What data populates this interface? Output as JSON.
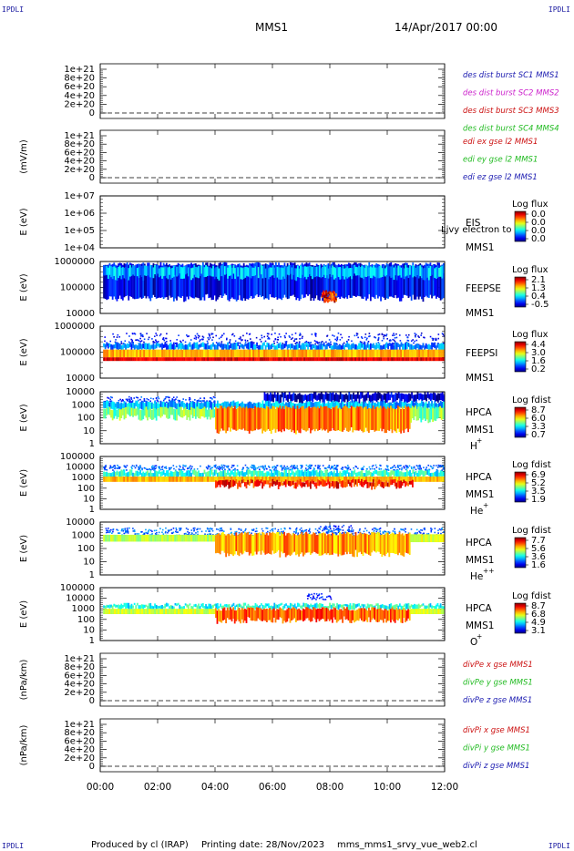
{
  "corner_label": "IPDLI",
  "header": {
    "title": "MMS1",
    "datetime": "14/Apr/2017 00:00"
  },
  "footer": {
    "produced_by": "Produced by cl (IRAP)",
    "printing_date": "Printing date: 28/Nov/2023",
    "script": "mms_mms1_srvy_vue_web2.cl"
  },
  "time_axis": {
    "range_hours": [
      0,
      12
    ],
    "tick_labels": [
      "00:00",
      "02:00",
      "04:00",
      "06:00",
      "08:00",
      "10:00",
      "12:00"
    ]
  },
  "chart_data": [
    {
      "type": "line",
      "id": "des",
      "ylabel": "",
      "ticks": [
        "1e+21",
        "8e+20",
        "6e+20",
        "4e+20",
        "2e+20",
        "0"
      ],
      "zero_line": true,
      "series": [
        {
          "name": "des dist burst SC1 MMS1",
          "color": "#1a1ab0"
        },
        {
          "name": "des dist burst SC2 MMS2",
          "color": "#cc22cc"
        },
        {
          "name": "des dist burst SC3 MMS3",
          "color": "#cc1111"
        },
        {
          "name": "des dist burst SC4 MMS4",
          "color": "#22bb22"
        }
      ]
    },
    {
      "type": "line",
      "id": "edi",
      "ylabel": "(mV/m)",
      "ticks": [
        "1e+21",
        "8e+20",
        "6e+20",
        "4e+20",
        "2e+20",
        "0"
      ],
      "zero_line": true,
      "series": [
        {
          "name": "edi ex gse l2 MMS1",
          "color": "#cc1111"
        },
        {
          "name": "edi ey gse l2 MMS1",
          "color": "#22bb22"
        },
        {
          "name": "edi ez gse l2 MMS1",
          "color": "#1a1ab0"
        }
      ]
    },
    {
      "type": "heatmap",
      "id": "eis",
      "ylabel": "E (eV)",
      "ticks": [
        "1e+07",
        "1e+06",
        "1e+05",
        "1e+04"
      ],
      "instrument": "EIS",
      "spacecraft": "MMS1",
      "overlay": "Ljvy electron to",
      "colorbar": {
        "title": "Log flux",
        "labels": [
          "0.0",
          "0.0",
          "0.0",
          "0.0"
        ]
      },
      "bands": []
    },
    {
      "type": "heatmap",
      "id": "feepse",
      "ylabel": "E (eV)",
      "ticks": [
        "1000000",
        "100000",
        "10000"
      ],
      "instrument": "FEEPSE",
      "spacecraft": "MMS1",
      "colorbar": {
        "title": "Log flux",
        "labels": [
          "2.1",
          "1.3",
          "0.4",
          "-0.5"
        ]
      },
      "bands": [
        {
          "y0": 0.3,
          "y1": 0.95,
          "t0": 0.1,
          "t1": 12,
          "level": 0.12,
          "style": "streak"
        },
        {
          "y0": 0.7,
          "y1": 0.9,
          "t0": 0.1,
          "t1": 12,
          "level": 0.3,
          "style": "streak"
        },
        {
          "y0": 0.25,
          "y1": 0.45,
          "t0": 7.7,
          "t1": 8.2,
          "level": 0.85,
          "style": "blob"
        }
      ]
    },
    {
      "type": "heatmap",
      "id": "feepsi",
      "ylabel": "E (eV)",
      "ticks": [
        "1000000",
        "100000",
        "10000"
      ],
      "instrument": "FEEPSI",
      "spacecraft": "MMS1",
      "colorbar": {
        "title": "Log flux",
        "labels": [
          "4.4",
          "3.0",
          "1.6",
          "0.2"
        ]
      },
      "bands": [
        {
          "y0": 0.6,
          "y1": 0.88,
          "t0": 0.1,
          "t1": 12,
          "level": 0.05,
          "style": "speckle"
        },
        {
          "y0": 0.55,
          "y1": 0.66,
          "t0": 0.1,
          "t1": 12,
          "level": 0.25,
          "style": "streak"
        },
        {
          "y0": 0.4,
          "y1": 0.55,
          "t0": 0.1,
          "t1": 12,
          "level": 0.7,
          "style": "solid"
        },
        {
          "y0": 0.33,
          "y1": 0.4,
          "t0": 0.1,
          "t1": 12,
          "level": 0.9,
          "style": "solid"
        }
      ]
    },
    {
      "type": "heatmap",
      "id": "hpca_h",
      "ylabel": "E (eV)",
      "ticks": [
        "10000",
        "1000",
        "100",
        "10",
        "1"
      ],
      "instrument": "HPCA",
      "spacecraft": "MMS1",
      "species": "H",
      "species_sup": "+",
      "colorbar": {
        "title": "Log fdist",
        "labels": [
          "8.7",
          "6.0",
          "3.3",
          "0.7"
        ]
      },
      "bands": [
        {
          "y0": 0.78,
          "y1": 0.92,
          "t0": 0.1,
          "t1": 4,
          "level": 0.1,
          "style": "speckle"
        },
        {
          "y0": 0.82,
          "y1": 0.97,
          "t0": 5.7,
          "t1": 12,
          "level": 0.08,
          "style": "streak"
        },
        {
          "y0": 0.65,
          "y1": 0.8,
          "t0": 0.1,
          "t1": 12,
          "level": 0.3,
          "style": "streak"
        },
        {
          "y0": 0.5,
          "y1": 0.68,
          "t0": 0.1,
          "t1": 4,
          "level": 0.5,
          "style": "streak"
        },
        {
          "y0": 0.25,
          "y1": 0.7,
          "t0": 4,
          "t1": 10.8,
          "level": 0.75,
          "style": "streak"
        },
        {
          "y0": 0.45,
          "y1": 0.7,
          "t0": 10.8,
          "t1": 12,
          "level": 0.5,
          "style": "streak"
        }
      ]
    },
    {
      "type": "heatmap",
      "id": "hpca_he1",
      "ylabel": "E (eV)",
      "ticks": [
        "100000",
        "10000",
        "1000",
        "100",
        "10",
        "1"
      ],
      "instrument": "HPCA",
      "spacecraft": "MMS1",
      "species": "He",
      "species_sup": "+",
      "colorbar": {
        "title": "Log fdist",
        "labels": [
          "6.9",
          "5.2",
          "3.5",
          "1.9"
        ]
      },
      "bands": [
        {
          "y0": 0.75,
          "y1": 0.85,
          "t0": 0.1,
          "t1": 12,
          "level": 0.15,
          "style": "speckle"
        },
        {
          "y0": 0.6,
          "y1": 0.72,
          "t0": 0.1,
          "t1": 12,
          "level": 0.4,
          "style": "streak"
        },
        {
          "y0": 0.52,
          "y1": 0.62,
          "t0": 0.1,
          "t1": 12,
          "level": 0.7,
          "style": "solid"
        },
        {
          "y0": 0.44,
          "y1": 0.54,
          "t0": 4,
          "t1": 10.9,
          "level": 0.85,
          "style": "streak"
        }
      ]
    },
    {
      "type": "heatmap",
      "id": "hpca_he2",
      "ylabel": "E (eV)",
      "ticks": [
        "10000",
        "1000",
        "100",
        "10",
        "1"
      ],
      "instrument": "HPCA",
      "spacecraft": "MMS1",
      "species": "He",
      "species_sup": "++",
      "colorbar": {
        "title": "Log fdist",
        "labels": [
          "7.7",
          "5.6",
          "3.6",
          "1.6"
        ]
      },
      "bands": [
        {
          "y0": 0.8,
          "y1": 0.95,
          "t0": 7.6,
          "t1": 8.8,
          "level": 0.08,
          "style": "speckle"
        },
        {
          "y0": 0.75,
          "y1": 0.9,
          "t0": 0.1,
          "t1": 12,
          "level": 0.15,
          "style": "speckle"
        },
        {
          "y0": 0.63,
          "y1": 0.76,
          "t0": 0.1,
          "t1": 4,
          "level": 0.55,
          "style": "solid"
        },
        {
          "y0": 0.4,
          "y1": 0.78,
          "t0": 4,
          "t1": 10.8,
          "level": 0.72,
          "style": "streak"
        },
        {
          "y0": 0.62,
          "y1": 0.77,
          "t0": 10.8,
          "t1": 12,
          "level": 0.6,
          "style": "solid"
        }
      ]
    },
    {
      "type": "heatmap",
      "id": "hpca_o",
      "ylabel": "E (eV)",
      "ticks": [
        "100000",
        "10000",
        "1000",
        "100",
        "10",
        "1"
      ],
      "instrument": "HPCA",
      "spacecraft": "MMS1",
      "species": "O",
      "species_sup": "+",
      "colorbar": {
        "title": "Log fdist",
        "labels": [
          "8.7",
          "6.8",
          "4.9",
          "3.1"
        ]
      },
      "bands": [
        {
          "y0": 0.78,
          "y1": 0.9,
          "t0": 7.2,
          "t1": 8.1,
          "level": 0.08,
          "style": "speckle"
        },
        {
          "y0": 0.6,
          "y1": 0.68,
          "t0": 0.1,
          "t1": 12,
          "level": 0.4,
          "style": "streak"
        },
        {
          "y0": 0.5,
          "y1": 0.6,
          "t0": 0.1,
          "t1": 4,
          "level": 0.58,
          "style": "solid"
        },
        {
          "y0": 0.38,
          "y1": 0.6,
          "t0": 4,
          "t1": 10.8,
          "level": 0.78,
          "style": "streak"
        },
        {
          "y0": 0.5,
          "y1": 0.6,
          "t0": 10.8,
          "t1": 12,
          "level": 0.6,
          "style": "solid"
        }
      ]
    },
    {
      "type": "line",
      "id": "divpe",
      "ylabel": "(nPa/km)",
      "ticks": [
        "1e+21",
        "8e+20",
        "6e+20",
        "4e+20",
        "2e+20",
        "0"
      ],
      "zero_line": true,
      "series": [
        {
          "name": "divPe x gse MMS1",
          "color": "#cc1111"
        },
        {
          "name": "divPe y gse MMS1",
          "color": "#22bb22"
        },
        {
          "name": "divPe z gse MMS1",
          "color": "#1a1ab0"
        }
      ]
    },
    {
      "type": "line",
      "id": "divpi",
      "ylabel": "(nPa/km)",
      "ticks": [
        "1e+21",
        "8e+20",
        "6e+20",
        "4e+20",
        "2e+20",
        "0"
      ],
      "zero_line": true,
      "series": [
        {
          "name": "divPi x gse MMS1",
          "color": "#cc1111"
        },
        {
          "name": "divPi y gse MMS1",
          "color": "#22bb22"
        },
        {
          "name": "divPi z gse MMS1",
          "color": "#1a1ab0"
        }
      ]
    }
  ]
}
